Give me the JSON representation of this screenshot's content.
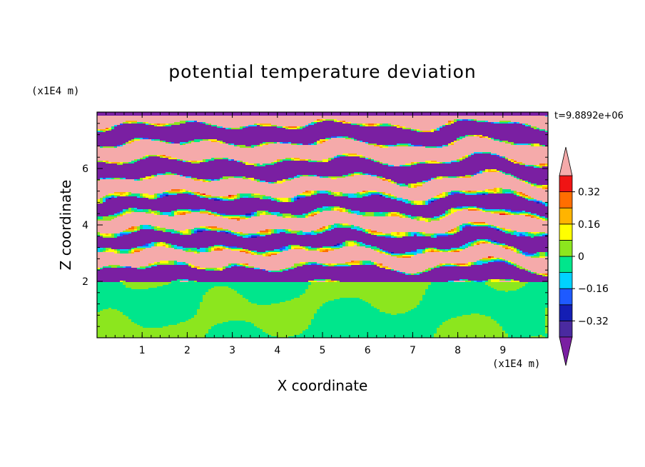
{
  "chart_data": {
    "type": "heatmap",
    "title": "potential temperature deviation",
    "xlabel": "X coordinate",
    "ylabel": "Z coordinate",
    "x_unit": "(x1E4 m)",
    "y_unit": "(x1E4 m)",
    "time_label": "t=9.8892e+06",
    "xlim": [
      0,
      10
    ],
    "ylim": [
      0,
      8
    ],
    "x_ticks": [
      "1",
      "2",
      "3",
      "4",
      "5",
      "6",
      "7",
      "8",
      "9"
    ],
    "y_ticks": [
      "2",
      "4",
      "6"
    ],
    "colorbar": {
      "levels": [
        -0.48,
        -0.4,
        -0.32,
        -0.24,
        -0.16,
        -0.08,
        0,
        0.08,
        0.16,
        0.24,
        0.32,
        0.4,
        0.48
      ],
      "tick_labels": [
        "0.32",
        "0.16",
        "0",
        "-0.16",
        "-0.32"
      ],
      "colors": [
        "#7a1fa2",
        "#4a2aa0",
        "#141eb4",
        "#1e5aff",
        "#00d2ff",
        "#00e68c",
        "#8ce61e",
        "#ffff00",
        "#ffb400",
        "#ff6e00",
        "#f01414",
        "#f5aaaa"
      ]
    },
    "regions": [
      {
        "z_range": [
          0,
          2
        ],
        "description": "lower layer, values near 0 to 0.08 (green / lime)"
      },
      {
        "z_range": [
          2,
          8
        ],
        "description": "upper layer, alternating bands of about -0.48 (purple) and 0.48 (pink) with fine structure"
      }
    ]
  }
}
